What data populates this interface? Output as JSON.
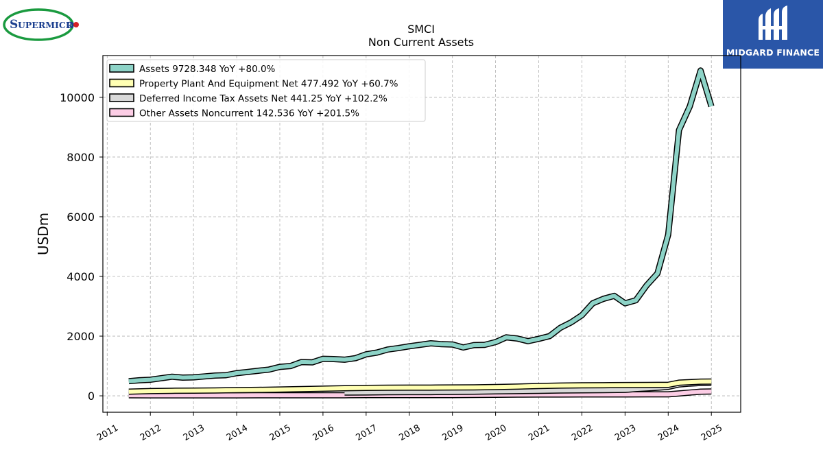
{
  "logos": {
    "left_brand": "SUPERMICRO",
    "right_brand": "MIDGARD FINANCE"
  },
  "chart_data": {
    "type": "line",
    "title": "SMCI",
    "subtitle": "Non Current  Assets",
    "xlabel": "",
    "ylabel": "USDm",
    "xlim": [
      2010.9,
      2025.68
    ],
    "ylim": [
      -550,
      11400
    ],
    "x_tick_labels": [
      "2011",
      "2012",
      "2013",
      "2014",
      "2015",
      "2016",
      "2017",
      "2018",
      "2019",
      "2020",
      "2021",
      "2022",
      "2023",
      "2024",
      "2025"
    ],
    "y_tick_labels": [
      "0",
      "2000",
      "4000",
      "6000",
      "8000",
      "10000"
    ],
    "grid": true,
    "legend_position": "top-left",
    "colors": {
      "assets": "#8dd3c7",
      "ppe": "#ffffb3",
      "deferred": "#d9d9d9",
      "other": "#fccde5",
      "edge": "#000000",
      "grid": "#b0b0b0"
    },
    "series": [
      {
        "name": "Assets",
        "legend_label": "Assets  9728.348 YoY +80.0%",
        "color": "#8dd3c7",
        "x": [
          2011.5,
          2011.75,
          2012.0,
          2012.25,
          2012.5,
          2012.75,
          2013.0,
          2013.25,
          2013.5,
          2013.75,
          2014.0,
          2014.25,
          2014.5,
          2014.75,
          2015.0,
          2015.25,
          2015.5,
          2015.75,
          2016.0,
          2016.25,
          2016.5,
          2016.75,
          2017.0,
          2017.25,
          2017.5,
          2017.75,
          2018.0,
          2018.25,
          2018.5,
          2018.75,
          2019.0,
          2019.25,
          2019.5,
          2019.75,
          2020.0,
          2020.25,
          2020.5,
          2020.75,
          2021.0,
          2021.25,
          2021.5,
          2021.75,
          2022.0,
          2022.25,
          2022.5,
          2022.75,
          2023.0,
          2023.25,
          2023.5,
          2023.75,
          2024.0,
          2024.25,
          2024.5,
          2024.75,
          2025.0
        ],
        "values": [
          490,
          520,
          540,
          590,
          640,
          610,
          620,
          650,
          680,
          690,
          760,
          800,
          840,
          880,
          970,
          1000,
          1130,
          1120,
          1240,
          1230,
          1210,
          1260,
          1390,
          1450,
          1550,
          1600,
          1660,
          1710,
          1760,
          1730,
          1720,
          1620,
          1700,
          1710,
          1800,
          1960,
          1920,
          1830,
          1910,
          2000,
          2280,
          2460,
          2700,
          3100,
          3250,
          3350,
          3100,
          3200,
          3700,
          4100,
          5400,
          8900,
          9700,
          10900,
          9700
        ]
      },
      {
        "name": "Property Plant And Equipment Net",
        "legend_label": "Property Plant And Equipment Net  477.492 YoY +60.7%",
        "color": "#ffffb3",
        "x": [
          2011.5,
          2012.0,
          2012.5,
          2013.0,
          2013.5,
          2014.0,
          2014.5,
          2015.0,
          2015.5,
          2016.0,
          2016.5,
          2017.0,
          2017.5,
          2018.0,
          2018.5,
          2019.0,
          2019.5,
          2020.0,
          2020.5,
          2021.0,
          2021.5,
          2022.0,
          2022.5,
          2023.0,
          2023.5,
          2024.0,
          2024.25,
          2024.5,
          2024.75,
          2025.0
        ],
        "values": [
          140,
          160,
          170,
          175,
          180,
          190,
          200,
          210,
          225,
          240,
          255,
          265,
          270,
          275,
          275,
          280,
          285,
          295,
          310,
          330,
          345,
          350,
          355,
          360,
          365,
          370,
          440,
          460,
          475,
          478
        ]
      },
      {
        "name": "Deferred Income Tax Assets Net",
        "legend_label": "Deferred Income Tax Assets Net  441.25 YoY +102.2%",
        "color": "#d9d9d9",
        "x": [
          2016.5,
          2017.0,
          2017.5,
          2018.0,
          2018.5,
          2019.0,
          2019.5,
          2020.0,
          2020.5,
          2021.0,
          2021.5,
          2022.0,
          2022.5,
          2023.0,
          2023.25,
          2023.5,
          2023.75,
          2024.0,
          2024.25,
          2024.5,
          2024.75,
          2025.0
        ],
        "values": [
          110,
          115,
          120,
          125,
          125,
          130,
          140,
          150,
          160,
          170,
          180,
          185,
          190,
          200,
          230,
          250,
          270,
          300,
          380,
          410,
          430,
          441
        ]
      },
      {
        "name": "Other Assets Noncurrent",
        "legend_label": "Other Assets Noncurrent  142.536 YoY +201.5%",
        "color": "#fccde5",
        "x": [
          2011.5,
          2012.0,
          2012.5,
          2013.0,
          2013.5,
          2014.0,
          2014.5,
          2015.0,
          2015.5,
          2016.0,
          2016.5,
          2017.0,
          2017.5,
          2018.0,
          2018.5,
          2019.0,
          2019.5,
          2020.0,
          2020.5,
          2021.0,
          2021.5,
          2022.0,
          2022.5,
          2023.0,
          2023.5,
          2024.0,
          2024.25,
          2024.5,
          2024.75,
          2025.0
        ],
        "values": [
          20,
          15,
          15,
          15,
          15,
          15,
          18,
          18,
          18,
          20,
          20,
          25,
          25,
          25,
          25,
          25,
          30,
          35,
          40,
          45,
          45,
          47,
          47,
          47,
          50,
          50,
          80,
          110,
          140,
          143
        ]
      }
    ]
  }
}
